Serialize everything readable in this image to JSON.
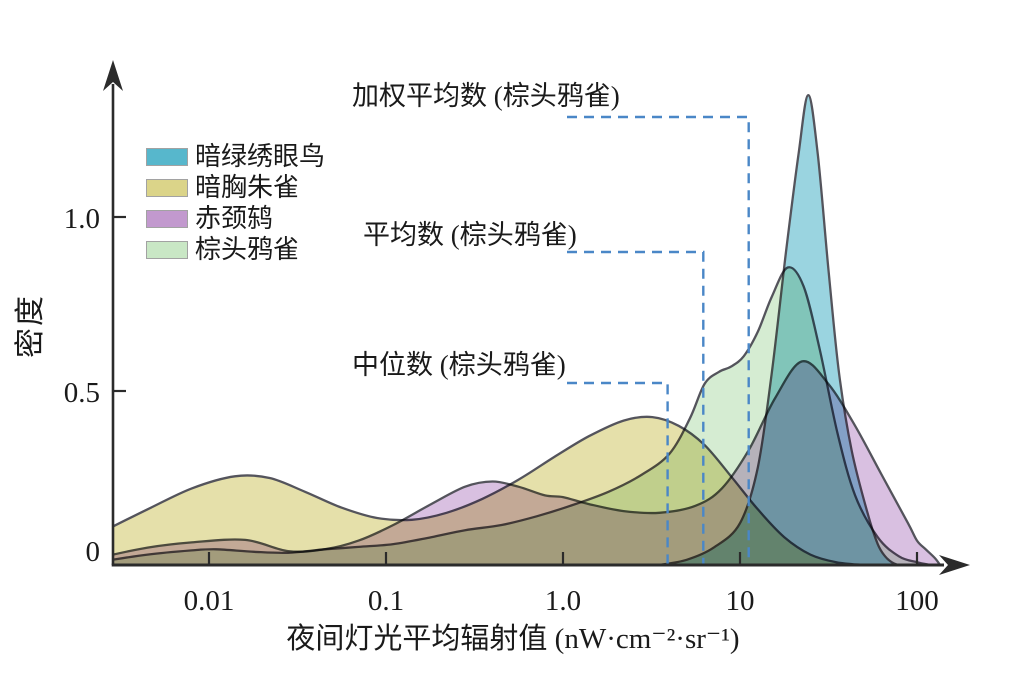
{
  "figure": {
    "y_axis_title": "密度",
    "x_axis_title": "夜间灯光平均辐射值 (nW·cm⁻²·sr⁻¹)"
  },
  "legend": {
    "items": [
      {
        "label": "暗绿绣眼鸟",
        "color": "#57b7cc"
      },
      {
        "label": "暗胸朱雀",
        "color": "#dbd489"
      },
      {
        "label": "赤颈鸫",
        "color": "#c299ce"
      },
      {
        "label": "棕头鸦雀",
        "color": "#c9e7c5"
      }
    ]
  },
  "colors": {
    "axis": "#2b2b2b",
    "curve_stroke": "#54545c",
    "dashed_line": "#4a87c7",
    "text": "#1a1a1a"
  },
  "chart_data": {
    "type": "area",
    "subtype": "kde-density",
    "x_scale": "log10",
    "xlabel": "夜间灯光平均辐射值 (nW·cm⁻²·sr⁻¹)",
    "ylabel": "密度",
    "xlim": [
      0.003,
      200
    ],
    "ylim": [
      0,
      1.45
    ],
    "grid": false,
    "legend_position": "upper-left-inside",
    "x_ticks": [
      {
        "value": 0.01,
        "label": "0.01"
      },
      {
        "value": 0.1,
        "label": "0.1"
      },
      {
        "value": 1,
        "label": "1.0"
      },
      {
        "value": 10,
        "label": "10"
      },
      {
        "value": 100,
        "label": "100"
      }
    ],
    "y_ticks": [
      {
        "value": 0,
        "label": "0"
      },
      {
        "value": 0.5,
        "label": "0.5"
      },
      {
        "value": 1.0,
        "label": "1.0"
      }
    ],
    "series": [
      {
        "id": "rosefinch",
        "name": "暗胸朱雀",
        "color": "#dbd489",
        "fill_opacity": 0.72,
        "points": [
          [
            0.0026,
            0.1
          ],
          [
            0.0045,
            0.16
          ],
          [
            0.008,
            0.22
          ],
          [
            0.014,
            0.255
          ],
          [
            0.022,
            0.25
          ],
          [
            0.035,
            0.21
          ],
          [
            0.056,
            0.165
          ],
          [
            0.089,
            0.135
          ],
          [
            0.14,
            0.13
          ],
          [
            0.22,
            0.15
          ],
          [
            0.35,
            0.19
          ],
          [
            0.56,
            0.245
          ],
          [
            0.89,
            0.31
          ],
          [
            1.4,
            0.37
          ],
          [
            2.2,
            0.415
          ],
          [
            3.2,
            0.425
          ],
          [
            4.5,
            0.4
          ],
          [
            6.3,
            0.345
          ],
          [
            8.9,
            0.255
          ],
          [
            12.6,
            0.16
          ],
          [
            17.8,
            0.08
          ],
          [
            25,
            0.03
          ],
          [
            35,
            0.008
          ],
          [
            50,
            0.0
          ]
        ]
      },
      {
        "id": "thrush",
        "name": "赤颈鸫",
        "color": "#c299ce",
        "fill_opacity": 0.62,
        "points": [
          [
            0.0026,
            0.025
          ],
          [
            0.0045,
            0.05
          ],
          [
            0.008,
            0.065
          ],
          [
            0.016,
            0.072
          ],
          [
            0.028,
            0.04
          ],
          [
            0.045,
            0.045
          ],
          [
            0.07,
            0.07
          ],
          [
            0.11,
            0.115
          ],
          [
            0.18,
            0.175
          ],
          [
            0.28,
            0.225
          ],
          [
            0.4,
            0.24
          ],
          [
            0.56,
            0.225
          ],
          [
            0.79,
            0.2
          ],
          [
            1.0,
            0.195
          ],
          [
            1.4,
            0.175
          ],
          [
            2.2,
            0.155
          ],
          [
            3.5,
            0.15
          ],
          [
            5.6,
            0.17
          ],
          [
            7.9,
            0.22
          ],
          [
            11.2,
            0.33
          ],
          [
            15.8,
            0.48
          ],
          [
            22.4,
            0.585
          ],
          [
            31.6,
            0.52
          ],
          [
            44.7,
            0.4
          ],
          [
            63,
            0.26
          ],
          [
            89,
            0.12
          ],
          [
            100,
            0.07
          ],
          [
            112,
            0.045
          ],
          [
            126,
            0.02
          ],
          [
            135,
            0.0
          ]
        ]
      },
      {
        "id": "white-eye",
        "name": "暗绿绣眼鸟",
        "color": "#57b7cc",
        "fill_opacity": 0.6,
        "points": [
          [
            3.5,
            0.0
          ],
          [
            5.0,
            0.015
          ],
          [
            7.1,
            0.05
          ],
          [
            10,
            0.12
          ],
          [
            12.6,
            0.28
          ],
          [
            15.1,
            0.55
          ],
          [
            18.2,
            0.9
          ],
          [
            21.4,
            1.18
          ],
          [
            24.3,
            1.35
          ],
          [
            27.5,
            1.18
          ],
          [
            31.6,
            0.85
          ],
          [
            36.3,
            0.55
          ],
          [
            42.7,
            0.33
          ],
          [
            52.5,
            0.15
          ],
          [
            60,
            0.06
          ],
          [
            66,
            0.025
          ],
          [
            72,
            0.008
          ],
          [
            78,
            0.0
          ]
        ]
      },
      {
        "id": "parrotbill",
        "name": "棕头鸦雀",
        "color": "#c9e7c5",
        "fill_opacity": 0.78,
        "points": [
          [
            0.0026,
            0.012
          ],
          [
            0.0045,
            0.03
          ],
          [
            0.008,
            0.042
          ],
          [
            0.011,
            0.045
          ],
          [
            0.018,
            0.038
          ],
          [
            0.028,
            0.035
          ],
          [
            0.045,
            0.045
          ],
          [
            0.07,
            0.052
          ],
          [
            0.11,
            0.06
          ],
          [
            0.18,
            0.08
          ],
          [
            0.28,
            0.1
          ],
          [
            0.45,
            0.115
          ],
          [
            0.71,
            0.14
          ],
          [
            1.1,
            0.17
          ],
          [
            1.8,
            0.21
          ],
          [
            2.8,
            0.26
          ],
          [
            4.0,
            0.32
          ],
          [
            5.2,
            0.42
          ],
          [
            6.3,
            0.52
          ],
          [
            7.6,
            0.555
          ],
          [
            8.9,
            0.57
          ],
          [
            10.5,
            0.6
          ],
          [
            12.6,
            0.67
          ],
          [
            15.1,
            0.77
          ],
          [
            18.6,
            0.855
          ],
          [
            22.9,
            0.8
          ],
          [
            28.2,
            0.62
          ],
          [
            35.5,
            0.38
          ],
          [
            44.7,
            0.2
          ],
          [
            60,
            0.08
          ],
          [
            79,
            0.025
          ],
          [
            100,
            0.008
          ],
          [
            120,
            0.0
          ]
        ]
      }
    ],
    "stat_lines": [
      {
        "id": "weighted-mean",
        "value": 11.2,
        "label": "加权平均数 (棕头鸦雀)",
        "species": "棕头鸦雀"
      },
      {
        "id": "mean",
        "value": 6.2,
        "label": "平均数 (棕头鸦雀)",
        "species": "棕头鸦雀"
      },
      {
        "id": "median",
        "value": 3.9,
        "label": "中位数 (棕头鸦雀)",
        "species": "棕头鸦雀"
      }
    ]
  }
}
